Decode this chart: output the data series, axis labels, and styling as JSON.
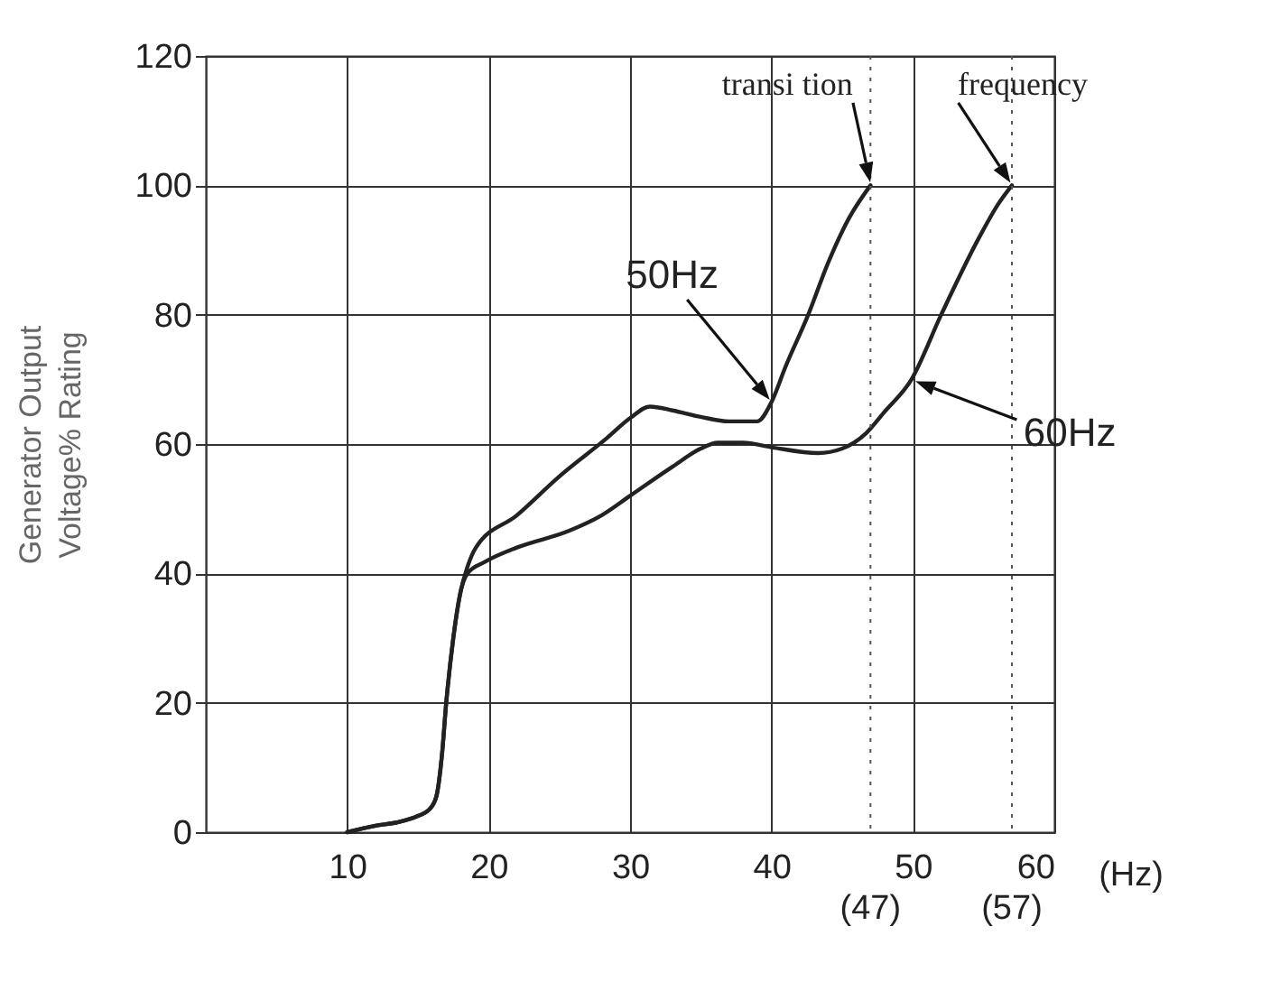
{
  "chart_data": {
    "type": "line",
    "xlabel": "(Hz)",
    "ylabel": "Generator Output\nVoltage% Rating",
    "xlim": [
      0,
      60
    ],
    "xticks": [
      10,
      20,
      30,
      40,
      50,
      60
    ],
    "ylim": [
      0,
      120
    ],
    "yticks": [
      0,
      20,
      40,
      60,
      80,
      100,
      120
    ],
    "grid": true,
    "marker": "none",
    "line_style": "solid",
    "series": [
      {
        "name": "50Hz",
        "color": "#222222",
        "x": [
          10,
          12,
          13.5,
          15,
          15.8,
          16.3,
          16.7,
          17,
          17.5,
          18,
          18.5,
          19.1,
          22,
          25,
          28.4,
          30,
          31.4,
          33,
          35,
          37,
          39,
          40,
          41,
          42.6,
          44,
          45.5,
          47
        ],
        "values": [
          0,
          1,
          1.5,
          2.5,
          3.5,
          5.5,
          12,
          20,
          30,
          37,
          41,
          44,
          49,
          55,
          61,
          64,
          65.8,
          65.2,
          64.2,
          63.5,
          63.5,
          66.5,
          72,
          80,
          88,
          95,
          100
        ]
      },
      {
        "name": "60Hz",
        "color": "#222222",
        "x": [
          10,
          12,
          13.5,
          15,
          15.8,
          16.3,
          16.7,
          17,
          17.5,
          18,
          18.5,
          19.75,
          22,
          25.7,
          28,
          30,
          33,
          35,
          36.2,
          38,
          40,
          43.3,
          45,
          46.7,
          48,
          49.9,
          52,
          54.7,
          56,
          57
        ],
        "values": [
          0,
          1,
          1.5,
          2.5,
          3.5,
          5.5,
          12,
          20,
          30,
          37,
          40,
          41.8,
          44,
          46.6,
          49,
          52,
          56.5,
          59.3,
          60.2,
          60.2,
          59.5,
          58.6,
          59.3,
          61.7,
          65,
          70,
          80,
          92,
          97,
          100
        ]
      }
    ],
    "ref_lines": [
      {
        "axis": "x",
        "value": 47,
        "label": "(47)",
        "line_style": "dotted"
      },
      {
        "axis": "x",
        "value": 57,
        "label": "(57)",
        "line_style": "dotted"
      }
    ],
    "annotations": [
      {
        "text": "transi tion",
        "x": 47,
        "y": 100
      },
      {
        "text": "frequency",
        "x": 57,
        "y": 100
      }
    ]
  }
}
